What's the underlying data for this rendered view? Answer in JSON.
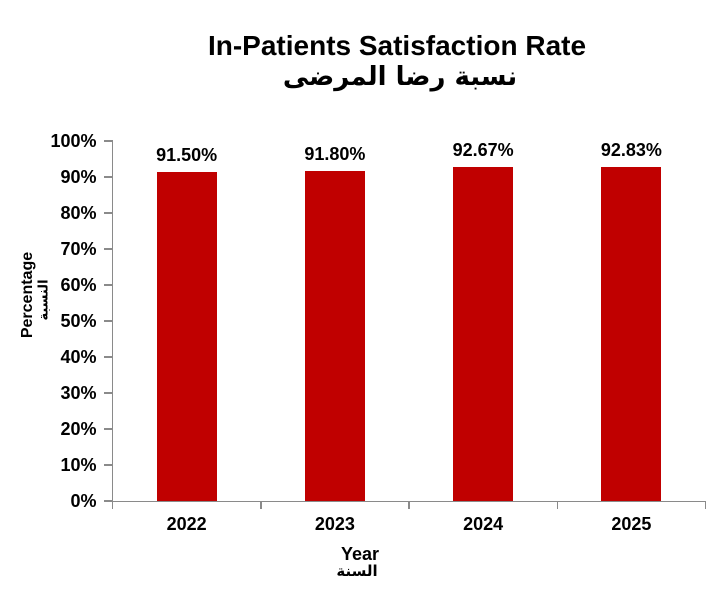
{
  "chart_data": {
    "type": "bar",
    "title": "In-Patients Satisfaction Rate",
    "subtitle_ar": "نسبة رضا المرضى",
    "categories": [
      "2022",
      "2023",
      "2024",
      "2025"
    ],
    "values": [
      91.5,
      91.8,
      92.67,
      92.83
    ],
    "data_labels": [
      "91.50%",
      "91.80%",
      "92.67%",
      "92.83%"
    ],
    "xlabel": "Year",
    "xlabel_ar": "السنة",
    "ylabel": "Percentage",
    "ylabel_ar": "النسبة",
    "ylim": [
      0,
      100
    ],
    "y_ticks": [
      "0%",
      "10%",
      "20%",
      "30%",
      "40%",
      "50%",
      "60%",
      "70%",
      "80%",
      "90%",
      "100%"
    ],
    "grid": false,
    "legend": false,
    "bar_color": "#C00000",
    "axis_color": "#8A8A8A",
    "text_color": "#000000",
    "background_color": "#FFFFFF"
  }
}
